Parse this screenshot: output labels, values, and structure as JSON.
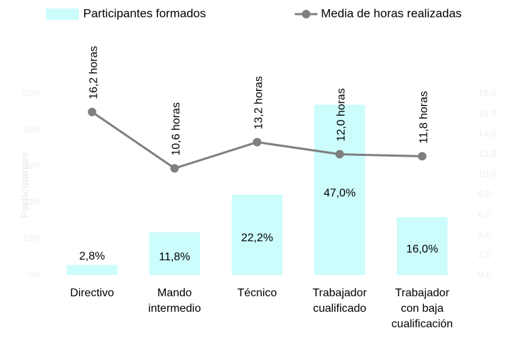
{
  "chart_data": {
    "type": "bar-line",
    "categories": [
      [
        "Directivo"
      ],
      [
        "Mando",
        "intermedio"
      ],
      [
        "Técnico"
      ],
      [
        "Trabajador",
        "cualificado"
      ],
      [
        "Trabajador",
        "con baja",
        "cualificación"
      ]
    ],
    "ylabel": "Participantes",
    "series": [
      {
        "name": "Participantes formados",
        "type": "bar",
        "color": "#ccfcfc",
        "values": [
          2.8,
          11.8,
          22.2,
          47.0,
          16.0
        ],
        "value_labels": [
          "2,8%",
          "11,8%",
          "22,2%",
          "47,0%",
          "16,0%"
        ]
      },
      {
        "name": "Media de horas realizadas",
        "type": "line",
        "axis": "y2",
        "color": "#7f7f7f",
        "values": [
          16.2,
          10.6,
          13.2,
          12.0,
          11.8
        ],
        "value_labels": [
          "16,2 horas",
          "10,6 horas",
          "13,2 horas",
          "12,0 horas",
          "11,8 horas"
        ]
      }
    ],
    "ylim": [
      0,
      50
    ],
    "yticks": [
      {
        "value": 0,
        "label": "0%"
      },
      {
        "value": 10,
        "label": "10%"
      },
      {
        "value": 20,
        "label": "20%"
      },
      {
        "value": 30,
        "label": "30%"
      },
      {
        "value": 40,
        "label": "40%"
      },
      {
        "value": 50,
        "label": "50%"
      }
    ],
    "y2lim": [
      0,
      18
    ],
    "y2ticks": [
      {
        "value": 0,
        "label": "0,0"
      },
      {
        "value": 2,
        "label": "2,0"
      },
      {
        "value": 4,
        "label": "4,0"
      },
      {
        "value": 6,
        "label": "6,0"
      },
      {
        "value": 8,
        "label": "8,0"
      },
      {
        "value": 10,
        "label": "10,0"
      },
      {
        "value": 12,
        "label": "12,0"
      },
      {
        "value": 14,
        "label": "14,0"
      },
      {
        "value": 16,
        "label": "16,0"
      },
      {
        "value": 18,
        "label": "18,0"
      }
    ],
    "legend": "top"
  }
}
